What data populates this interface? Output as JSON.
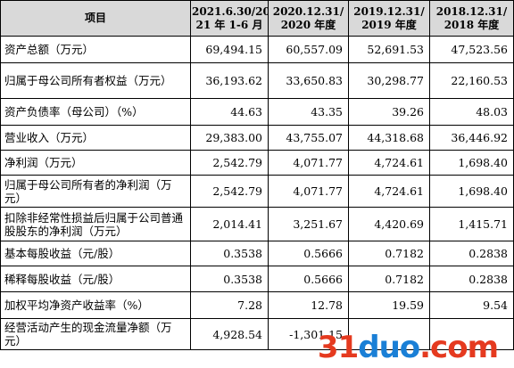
{
  "table": {
    "header": {
      "label": "项目",
      "periods": [
        [
          "2021.6.30/20",
          "21 年 1-6 月"
        ],
        [
          "2020.12.31/",
          "2020 年度"
        ],
        [
          "2019.12.31/",
          "2019 年度"
        ],
        [
          "2018.12.31/",
          "2018 年度"
        ]
      ]
    },
    "rows": [
      {
        "label": "资产总额（万元）",
        "values": [
          "69,494.15",
          "60,557.09",
          "52,691.53",
          "47,523.56"
        ]
      },
      {
        "label": "归属于母公司所有者权益（万元）",
        "values": [
          "36,193.62",
          "33,650.83",
          "30,298.77",
          "22,160.53"
        ]
      },
      {
        "label": "资产负债率（母公司）（%）",
        "values": [
          "44.63",
          "43.35",
          "39.26",
          "48.03"
        ]
      },
      {
        "label": "营业收入（万元）",
        "values": [
          "29,383.00",
          "43,755.07",
          "44,318.68",
          "36,446.92"
        ]
      },
      {
        "label": "净利润（万元）",
        "values": [
          "2,542.79",
          "4,071.77",
          "4,724.61",
          "1,698.40"
        ]
      },
      {
        "label": "归属于母公司所有者的净利润（万元）",
        "values": [
          "2,542.79",
          "4,071.77",
          "4,724.61",
          "1,698.40"
        ]
      },
      {
        "label": "扣除非经常性损益后归属于公司普通股股东的净利润（万元）",
        "values": [
          "2,014.41",
          "3,251.67",
          "4,420.69",
          "1,415.71"
        ]
      },
      {
        "label": "基本每股收益（元/股）",
        "values": [
          "0.3538",
          "0.5666",
          "0.7182",
          "0.2838"
        ]
      },
      {
        "label": "稀释每股收益（元/股）",
        "values": [
          "0.3538",
          "0.5666",
          "0.7182",
          "0.2838"
        ]
      },
      {
        "label": "加权平均净资产收益率（%）",
        "values": [
          "7.28",
          "12.78",
          "19.59",
          "9.54"
        ]
      },
      {
        "label": "经营活动产生的现金流量净额（万元）",
        "values": [
          "4,928.54",
          "-1,301.15",
          "",
          ""
        ]
      }
    ]
  },
  "watermark": {
    "part1": "31",
    "part2": "duo",
    "part3": ".com"
  }
}
